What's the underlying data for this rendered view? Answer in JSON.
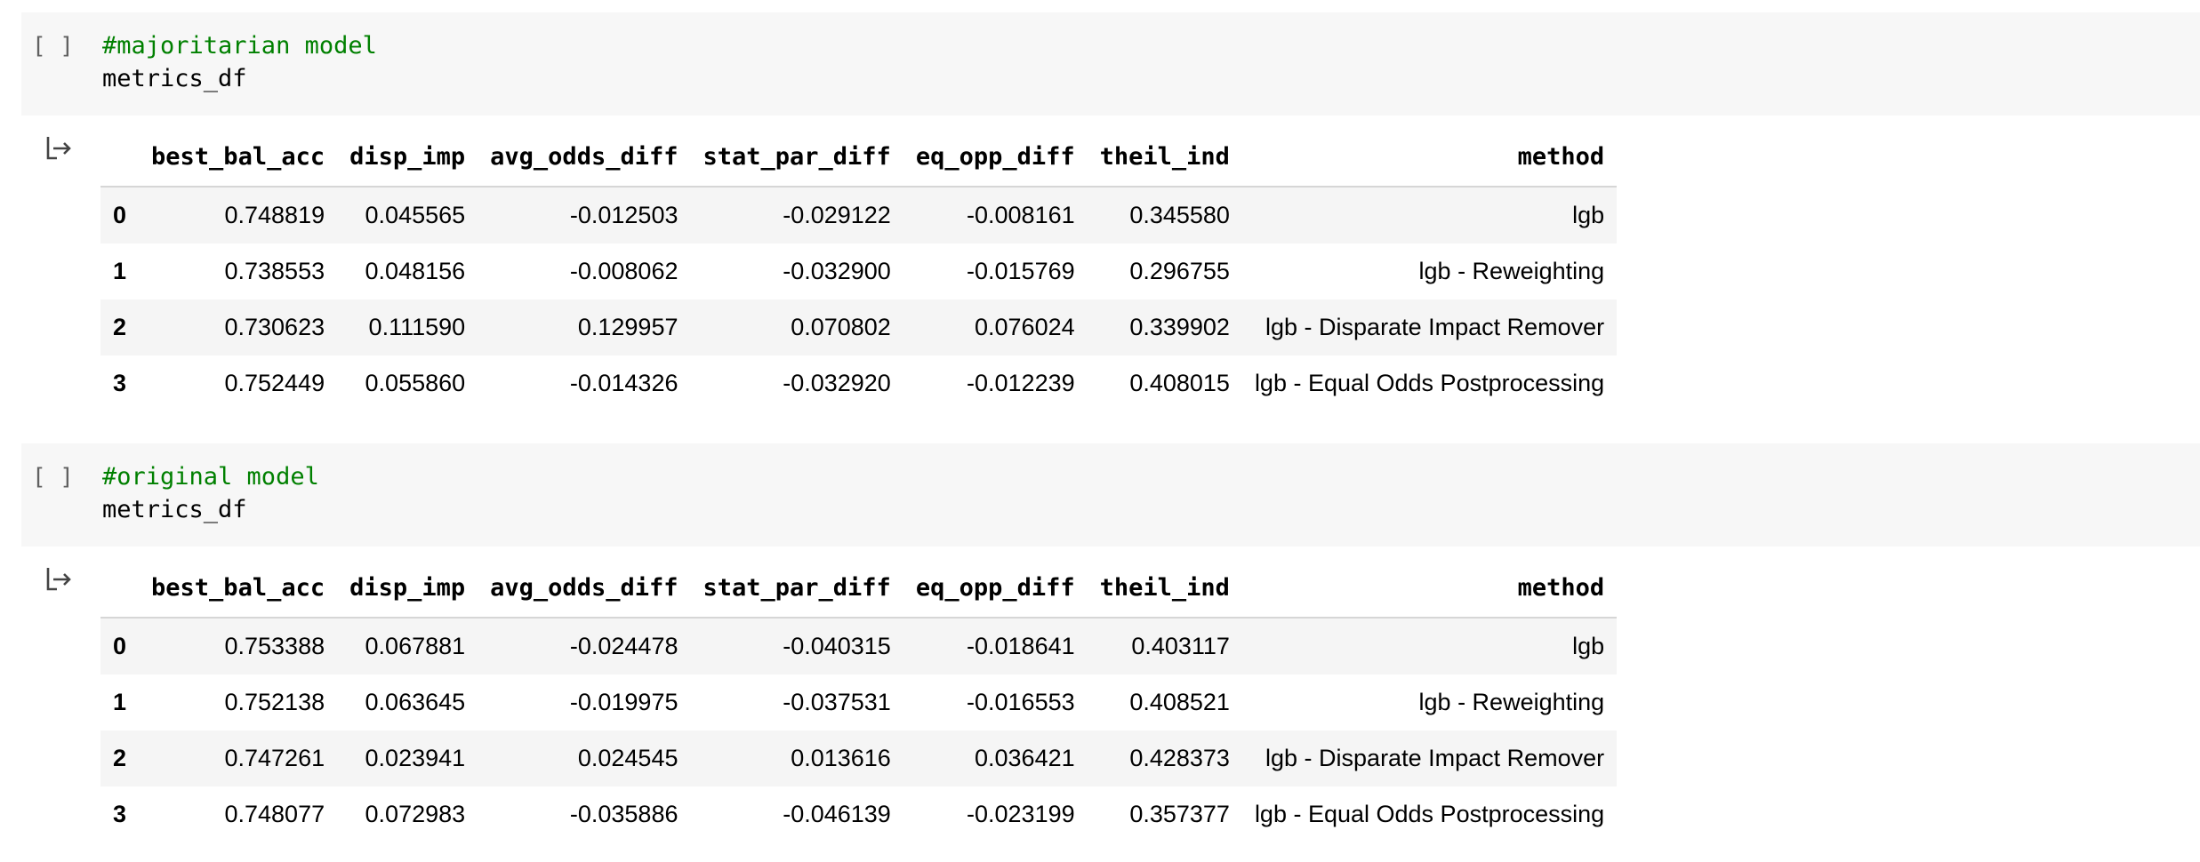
{
  "cells": [
    {
      "run_bracket": "[ ]",
      "code_lines": [
        {
          "text": "#majoritarian model",
          "kind": "comment"
        },
        {
          "text": "metrics_df",
          "kind": "code"
        }
      ],
      "output_icon": "output-arrow-icon",
      "table": {
        "columns": [
          "",
          "best_bal_acc",
          "disp_imp",
          "avg_odds_diff",
          "stat_par_diff",
          "eq_opp_diff",
          "theil_ind",
          "method"
        ],
        "rows": [
          [
            "0",
            "0.748819",
            "0.045565",
            "-0.012503",
            "-0.029122",
            "-0.008161",
            "0.345580",
            "lgb"
          ],
          [
            "1",
            "0.738553",
            "0.048156",
            "-0.008062",
            "-0.032900",
            "-0.015769",
            "0.296755",
            "lgb - Reweighting"
          ],
          [
            "2",
            "0.730623",
            "0.111590",
            "0.129957",
            "0.070802",
            "0.076024",
            "0.339902",
            "lgb - Disparate Impact Remover"
          ],
          [
            "3",
            "0.752449",
            "0.055860",
            "-0.014326",
            "-0.032920",
            "-0.012239",
            "0.408015",
            "lgb - Equal Odds Postprocessing"
          ]
        ]
      }
    },
    {
      "run_bracket": "[ ]",
      "code_lines": [
        {
          "text": "#original model",
          "kind": "comment"
        },
        {
          "text": "metrics_df",
          "kind": "code"
        }
      ],
      "output_icon": "output-arrow-icon",
      "table": {
        "columns": [
          "",
          "best_bal_acc",
          "disp_imp",
          "avg_odds_diff",
          "stat_par_diff",
          "eq_opp_diff",
          "theil_ind",
          "method"
        ],
        "rows": [
          [
            "0",
            "0.753388",
            "0.067881",
            "-0.024478",
            "-0.040315",
            "-0.018641",
            "0.403117",
            "lgb"
          ],
          [
            "1",
            "0.752138",
            "0.063645",
            "-0.019975",
            "-0.037531",
            "-0.016553",
            "0.408521",
            "lgb - Reweighting"
          ],
          [
            "2",
            "0.747261",
            "0.023941",
            "0.024545",
            "0.013616",
            "0.036421",
            "0.428373",
            "lgb - Disparate Impact Remover"
          ],
          [
            "3",
            "0.748077",
            "0.072983",
            "-0.035886",
            "-0.046139",
            "-0.023199",
            "0.357377",
            "lgb - Equal Odds Postprocessing"
          ]
        ]
      }
    }
  ],
  "colors": {
    "comment": "#008000",
    "cell_background": "#f7f7f7",
    "row_stripe": "#f5f5f5"
  }
}
